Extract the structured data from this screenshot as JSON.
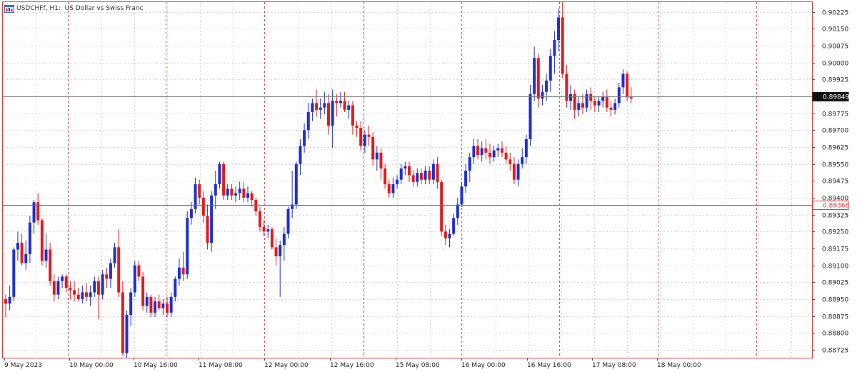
{
  "header": {
    "symbol": "USDCHFf",
    "timeframe": "H1:",
    "description": "US Dollar vs Swiss Franc"
  },
  "colors": {
    "bull": "#1f2fd1",
    "bear": "#e41b1b",
    "frame": "#e43a3a",
    "grid": "#d8d8d8",
    "period_sep": "#e05050"
  },
  "chart_data": {
    "type": "candlestick",
    "ylim": [
      0.8869,
      0.90268
    ],
    "y_ticks": [
      "0.90225",
      "0.90150",
      "0.90075",
      "0.90000",
      "0.89925",
      "0.89849",
      "0.89775",
      "0.89700",
      "0.89625",
      "0.89550",
      "0.89475",
      "0.89400",
      "0.89368",
      "0.89325",
      "0.89250",
      "0.89175",
      "0.89100",
      "0.89025",
      "0.88950",
      "0.88875",
      "0.88800",
      "0.88725"
    ],
    "x_labels": [
      "9 May 2023",
      "10 May 00:00",
      "10 May 16:00",
      "11 May 08:00",
      "12 May 00:00",
      "12 May 16:00",
      "15 May 08:00",
      "16 May 00:00",
      "16 May 16:00",
      "17 May 08:00",
      "18 May 00:00"
    ],
    "price_lines": [
      {
        "label": "0.89849",
        "value": 0.89849,
        "kind": "bid"
      },
      {
        "label": "0.89368",
        "value": 0.89368,
        "kind": "alert"
      }
    ],
    "candles": [
      [
        0.8895,
        0.8897,
        0.8887,
        0.8893
      ],
      [
        0.8893,
        0.8901,
        0.889,
        0.8896
      ],
      [
        0.8896,
        0.8918,
        0.8894,
        0.8917
      ],
      [
        0.8917,
        0.8925,
        0.8912,
        0.892
      ],
      [
        0.892,
        0.8924,
        0.891,
        0.8911
      ],
      [
        0.8911,
        0.8921,
        0.8908,
        0.8915
      ],
      [
        0.8915,
        0.8932,
        0.8911,
        0.8929
      ],
      [
        0.8929,
        0.8939,
        0.8924,
        0.8938
      ],
      [
        0.8938,
        0.8942,
        0.8928,
        0.893
      ],
      [
        0.893,
        0.8931,
        0.891,
        0.8912
      ],
      [
        0.8912,
        0.8924,
        0.8909,
        0.8917
      ],
      [
        0.8917,
        0.892,
        0.8901,
        0.8903
      ],
      [
        0.8903,
        0.8906,
        0.8894,
        0.8897
      ],
      [
        0.8897,
        0.8905,
        0.8895,
        0.8903
      ],
      [
        0.8903,
        0.8906,
        0.89,
        0.8905
      ],
      [
        0.8905,
        0.8906,
        0.8898,
        0.89
      ],
      [
        0.89,
        0.8903,
        0.8895,
        0.8899
      ],
      [
        0.8899,
        0.8903,
        0.8894,
        0.8897
      ],
      [
        0.8897,
        0.89,
        0.8894,
        0.8895
      ],
      [
        0.8895,
        0.8901,
        0.8893,
        0.8898
      ],
      [
        0.8898,
        0.8902,
        0.8894,
        0.8896
      ],
      [
        0.8896,
        0.8901,
        0.8892,
        0.8898
      ],
      [
        0.8898,
        0.8905,
        0.8896,
        0.8903
      ],
      [
        0.8903,
        0.8905,
        0.8886,
        0.8897
      ],
      [
        0.8897,
        0.8908,
        0.8895,
        0.8906
      ],
      [
        0.8906,
        0.8909,
        0.89,
        0.8904
      ],
      [
        0.8904,
        0.8913,
        0.89,
        0.8911
      ],
      [
        0.8911,
        0.892,
        0.8909,
        0.8918
      ],
      [
        0.8918,
        0.8926,
        0.8896,
        0.8898
      ],
      [
        0.8898,
        0.8903,
        0.887,
        0.8871
      ],
      [
        0.8871,
        0.889,
        0.8869,
        0.8888
      ],
      [
        0.8888,
        0.89,
        0.8883,
        0.8898
      ],
      [
        0.8898,
        0.8912,
        0.8896,
        0.891
      ],
      [
        0.891,
        0.8912,
        0.8903,
        0.8905
      ],
      [
        0.8905,
        0.8907,
        0.889,
        0.8892
      ],
      [
        0.8892,
        0.8898,
        0.8889,
        0.8896
      ],
      [
        0.8896,
        0.8897,
        0.8887,
        0.8889
      ],
      [
        0.8889,
        0.8896,
        0.8887,
        0.8894
      ],
      [
        0.8894,
        0.8897,
        0.889,
        0.8891
      ],
      [
        0.8891,
        0.8895,
        0.8888,
        0.8893
      ],
      [
        0.8893,
        0.8896,
        0.8887,
        0.8889
      ],
      [
        0.8889,
        0.8898,
        0.8887,
        0.8896
      ],
      [
        0.8896,
        0.8905,
        0.8894,
        0.8904
      ],
      [
        0.8904,
        0.8913,
        0.8901,
        0.8909
      ],
      [
        0.8909,
        0.8916,
        0.8903,
        0.8906
      ],
      [
        0.8906,
        0.8934,
        0.8904,
        0.8931
      ],
      [
        0.8931,
        0.8938,
        0.8928,
        0.8935
      ],
      [
        0.8935,
        0.8949,
        0.8933,
        0.8946
      ],
      [
        0.8946,
        0.8948,
        0.8937,
        0.894
      ],
      [
        0.894,
        0.8943,
        0.8929,
        0.8932
      ],
      [
        0.8932,
        0.8937,
        0.8917,
        0.892
      ],
      [
        0.892,
        0.8943,
        0.8916,
        0.8941
      ],
      [
        0.8941,
        0.8952,
        0.8935,
        0.8946
      ],
      [
        0.8946,
        0.8956,
        0.8944,
        0.8955
      ],
      [
        0.8955,
        0.8956,
        0.8939,
        0.8941
      ],
      [
        0.8941,
        0.8946,
        0.8939,
        0.8944
      ],
      [
        0.8944,
        0.8946,
        0.8939,
        0.8941
      ],
      [
        0.8941,
        0.8945,
        0.8938,
        0.8942
      ],
      [
        0.8942,
        0.8947,
        0.8939,
        0.8944
      ],
      [
        0.8944,
        0.8947,
        0.8938,
        0.894
      ],
      [
        0.894,
        0.8945,
        0.8938,
        0.8942
      ],
      [
        0.8942,
        0.8943,
        0.8936,
        0.8939
      ],
      [
        0.8939,
        0.894,
        0.8932,
        0.8934
      ],
      [
        0.8934,
        0.8936,
        0.8925,
        0.8927
      ],
      [
        0.8927,
        0.893,
        0.8923,
        0.8925
      ],
      [
        0.8925,
        0.8928,
        0.8922,
        0.8926
      ],
      [
        0.8926,
        0.8927,
        0.8917,
        0.8918
      ],
      [
        0.8918,
        0.8922,
        0.891,
        0.8914
      ],
      [
        0.8914,
        0.8921,
        0.8896,
        0.8919
      ],
      [
        0.8919,
        0.8927,
        0.8912,
        0.8924
      ],
      [
        0.8924,
        0.8936,
        0.8922,
        0.8935
      ],
      [
        0.8935,
        0.8952,
        0.8931,
        0.8937
      ],
      [
        0.8937,
        0.8956,
        0.8935,
        0.8955
      ],
      [
        0.8955,
        0.8966,
        0.895,
        0.8963
      ],
      [
        0.8963,
        0.8973,
        0.896,
        0.897
      ],
      [
        0.897,
        0.8982,
        0.8966,
        0.8978
      ],
      [
        0.8978,
        0.8984,
        0.8974,
        0.8982
      ],
      [
        0.8982,
        0.8988,
        0.8976,
        0.8979
      ],
      [
        0.8979,
        0.8984,
        0.8975,
        0.898
      ],
      [
        0.898,
        0.8987,
        0.8977,
        0.8982
      ],
      [
        0.8982,
        0.8986,
        0.8968,
        0.8972
      ],
      [
        0.8972,
        0.8988,
        0.8962,
        0.8983
      ],
      [
        0.8983,
        0.8986,
        0.8976,
        0.8982
      ],
      [
        0.8982,
        0.8987,
        0.898,
        0.8983
      ],
      [
        0.8983,
        0.8987,
        0.8978,
        0.8979
      ],
      [
        0.8979,
        0.8983,
        0.8975,
        0.8981
      ],
      [
        0.8981,
        0.8983,
        0.8968,
        0.8972
      ],
      [
        0.8972,
        0.8974,
        0.8967,
        0.8971
      ],
      [
        0.8971,
        0.8974,
        0.8961,
        0.8963
      ],
      [
        0.8963,
        0.897,
        0.896,
        0.8968
      ],
      [
        0.8968,
        0.8972,
        0.8963,
        0.8967
      ],
      [
        0.8967,
        0.8969,
        0.8954,
        0.8957
      ],
      [
        0.8957,
        0.8963,
        0.8952,
        0.896
      ],
      [
        0.896,
        0.8962,
        0.8948,
        0.8953
      ],
      [
        0.8953,
        0.8955,
        0.8944,
        0.8946
      ],
      [
        0.8946,
        0.8948,
        0.894,
        0.8942
      ],
      [
        0.8942,
        0.8949,
        0.894,
        0.8946
      ],
      [
        0.8946,
        0.895,
        0.8944,
        0.8948
      ],
      [
        0.8948,
        0.8955,
        0.8946,
        0.8953
      ],
      [
        0.8953,
        0.8956,
        0.895,
        0.8954
      ],
      [
        0.8954,
        0.8956,
        0.8947,
        0.895
      ],
      [
        0.895,
        0.8952,
        0.8945,
        0.8947
      ],
      [
        0.8947,
        0.8953,
        0.8945,
        0.8951
      ],
      [
        0.8951,
        0.8953,
        0.8946,
        0.8948
      ],
      [
        0.8948,
        0.8954,
        0.8946,
        0.8952
      ],
      [
        0.8952,
        0.8954,
        0.8946,
        0.8948
      ],
      [
        0.8948,
        0.8957,
        0.8946,
        0.8955
      ],
      [
        0.8955,
        0.8958,
        0.8944,
        0.8947
      ],
      [
        0.8947,
        0.8948,
        0.8923,
        0.8925
      ],
      [
        0.8925,
        0.8928,
        0.8919,
        0.8922
      ],
      [
        0.8922,
        0.8926,
        0.8918,
        0.8924
      ],
      [
        0.8924,
        0.8933,
        0.8923,
        0.8931
      ],
      [
        0.8931,
        0.894,
        0.8928,
        0.8937
      ],
      [
        0.8937,
        0.8947,
        0.8936,
        0.8945
      ],
      [
        0.8945,
        0.8955,
        0.8942,
        0.8952
      ],
      [
        0.8952,
        0.896,
        0.8947,
        0.8958
      ],
      [
        0.8958,
        0.8966,
        0.8955,
        0.8963
      ],
      [
        0.8963,
        0.8966,
        0.8957,
        0.8959
      ],
      [
        0.8959,
        0.8965,
        0.8956,
        0.8962
      ],
      [
        0.8962,
        0.8966,
        0.8957,
        0.896
      ],
      [
        0.896,
        0.8964,
        0.8955,
        0.8958
      ],
      [
        0.8958,
        0.8963,
        0.8956,
        0.8961
      ],
      [
        0.8961,
        0.8964,
        0.8958,
        0.8962
      ],
      [
        0.8962,
        0.8965,
        0.8958,
        0.896
      ],
      [
        0.896,
        0.8963,
        0.8955,
        0.8957
      ],
      [
        0.8957,
        0.896,
        0.8952,
        0.8955
      ],
      [
        0.8955,
        0.8958,
        0.8946,
        0.8948
      ],
      [
        0.8948,
        0.8957,
        0.8945,
        0.8955
      ],
      [
        0.8955,
        0.8962,
        0.8953,
        0.8958
      ],
      [
        0.8958,
        0.8968,
        0.8955,
        0.8966
      ],
      [
        0.8966,
        0.899,
        0.8963,
        0.8986
      ],
      [
        0.8986,
        0.9007,
        0.8983,
        0.9002
      ],
      [
        0.9002,
        0.9004,
        0.898,
        0.8984
      ],
      [
        0.8984,
        0.899,
        0.8981,
        0.8987
      ],
      [
        0.8987,
        0.8995,
        0.8983,
        0.8992
      ],
      [
        0.8992,
        0.9006,
        0.8987,
        0.9003
      ],
      [
        0.9003,
        0.9014,
        0.8995,
        0.901
      ],
      [
        0.901,
        0.9024,
        0.9005,
        0.902
      ],
      [
        0.902,
        0.9027,
        0.8993,
        0.8995
      ],
      [
        0.8995,
        0.8999,
        0.898,
        0.8983
      ],
      [
        0.8983,
        0.899,
        0.8979,
        0.8986
      ],
      [
        0.8986,
        0.8988,
        0.8975,
        0.8979
      ],
      [
        0.8979,
        0.8985,
        0.8976,
        0.8982
      ],
      [
        0.8982,
        0.8986,
        0.8977,
        0.898
      ],
      [
        0.898,
        0.8988,
        0.8978,
        0.8986
      ],
      [
        0.8986,
        0.8989,
        0.8979,
        0.8983
      ],
      [
        0.8983,
        0.8985,
        0.8978,
        0.8981
      ],
      [
        0.8981,
        0.8985,
        0.8978,
        0.8983
      ],
      [
        0.8983,
        0.8987,
        0.898,
        0.8985
      ],
      [
        0.8985,
        0.8988,
        0.8978,
        0.898
      ],
      [
        0.898,
        0.8983,
        0.8976,
        0.8979
      ],
      [
        0.8979,
        0.8984,
        0.8977,
        0.8982
      ],
      [
        0.8982,
        0.8991,
        0.898,
        0.8989
      ],
      [
        0.8989,
        0.8997,
        0.8986,
        0.8995
      ],
      [
        0.8995,
        0.8996,
        0.8983,
        0.8985
      ],
      [
        0.8985,
        0.8989,
        0.8982,
        0.8984
      ]
    ]
  }
}
